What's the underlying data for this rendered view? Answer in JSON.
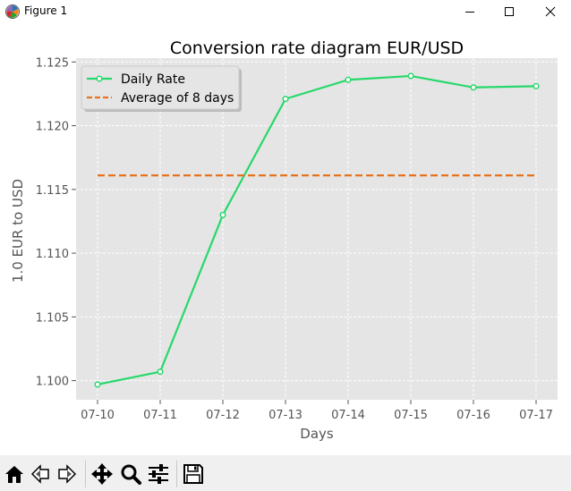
{
  "window": {
    "title": "Figure 1",
    "icon": "matplotlib-logo-icon",
    "controls": [
      "minimize-icon",
      "maximize-icon",
      "close-icon"
    ]
  },
  "toolbar": {
    "buttons": [
      {
        "name": "home-button",
        "icon": "home-icon"
      },
      {
        "name": "back-button",
        "icon": "back-arrow-icon"
      },
      {
        "name": "forward-button",
        "icon": "forward-arrow-icon"
      },
      {
        "name": "pan-button",
        "icon": "move-arrows-icon"
      },
      {
        "name": "zoom-button",
        "icon": "magnifier-icon"
      },
      {
        "name": "configure-subplots-button",
        "icon": "sliders-icon"
      },
      {
        "name": "save-button",
        "icon": "floppy-disk-icon"
      }
    ]
  },
  "chart_data": {
    "type": "line",
    "title": "Conversion rate diagram EUR/USD",
    "xlabel": "Days",
    "ylabel": "1.0 EUR to USD",
    "categories": [
      "07-10",
      "07-11",
      "07-12",
      "07-13",
      "07-14",
      "07-15",
      "07-16",
      "07-17"
    ],
    "ylim": [
      1.0985,
      1.1253
    ],
    "yticks": [
      "1.100",
      "1.105",
      "1.110",
      "1.115",
      "1.120",
      "1.125"
    ],
    "grid": true,
    "legend_position": "top-left",
    "series": [
      {
        "name": "Daily Rate",
        "style": "solid",
        "marker": "circle",
        "color": "#27d86a",
        "values": [
          1.0997,
          1.1007,
          1.113,
          1.1221,
          1.1236,
          1.1239,
          1.123,
          1.1231
        ]
      },
      {
        "name": "Average of 8 days",
        "style": "dashed",
        "color": "#e8721c",
        "values": [
          1.1161,
          1.1161,
          1.1161,
          1.1161,
          1.1161,
          1.1161,
          1.1161,
          1.1161
        ]
      }
    ]
  }
}
